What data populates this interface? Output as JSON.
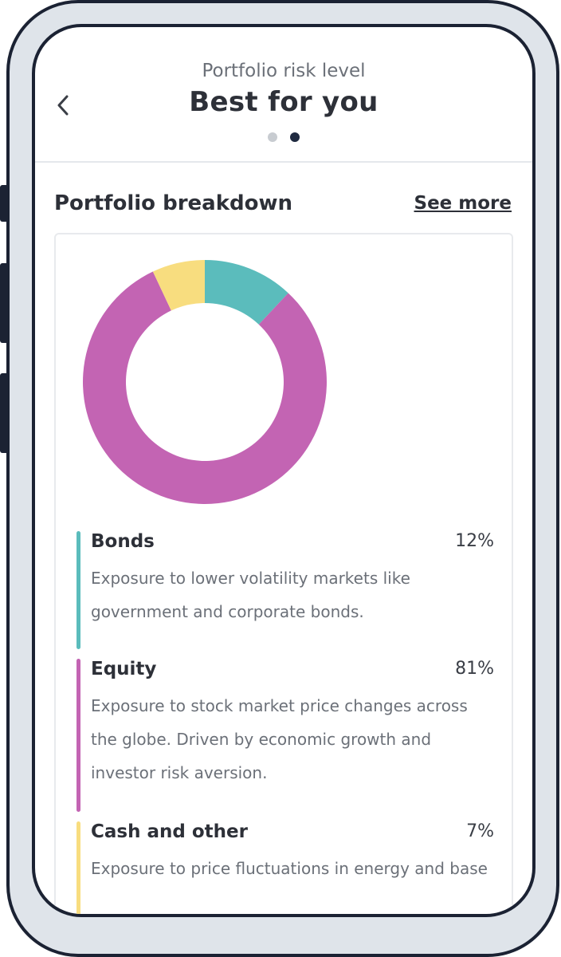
{
  "header": {
    "subtitle": "Portfolio risk level",
    "title": "Best for you",
    "pagination": {
      "total": 2,
      "active": 2
    }
  },
  "breakdown": {
    "title": "Portfolio breakdown",
    "see_more": "See more"
  },
  "chart_data": {
    "type": "pie",
    "categories": [
      "Bonds",
      "Equity",
      "Cash and other"
    ],
    "values": [
      12,
      81,
      7
    ],
    "colors": [
      "#5bbcbc",
      "#c364b3",
      "#f8dd7f"
    ]
  },
  "items": [
    {
      "name": "Bonds",
      "percent": "12%",
      "color": "#5bbcbc",
      "description": "Exposure to lower volatility markets like government and corporate bonds."
    },
    {
      "name": "Equity",
      "percent": "81%",
      "color": "#c364b3",
      "description": "Exposure to stock market price changes across the globe. Driven by economic growth and investor risk aversion."
    },
    {
      "name": "Cash and other",
      "percent": "7%",
      "color": "#f8dd7f",
      "description": "Exposure to price fluctuations in energy and base"
    }
  ],
  "icons": {
    "back": "chevron-left-icon"
  }
}
